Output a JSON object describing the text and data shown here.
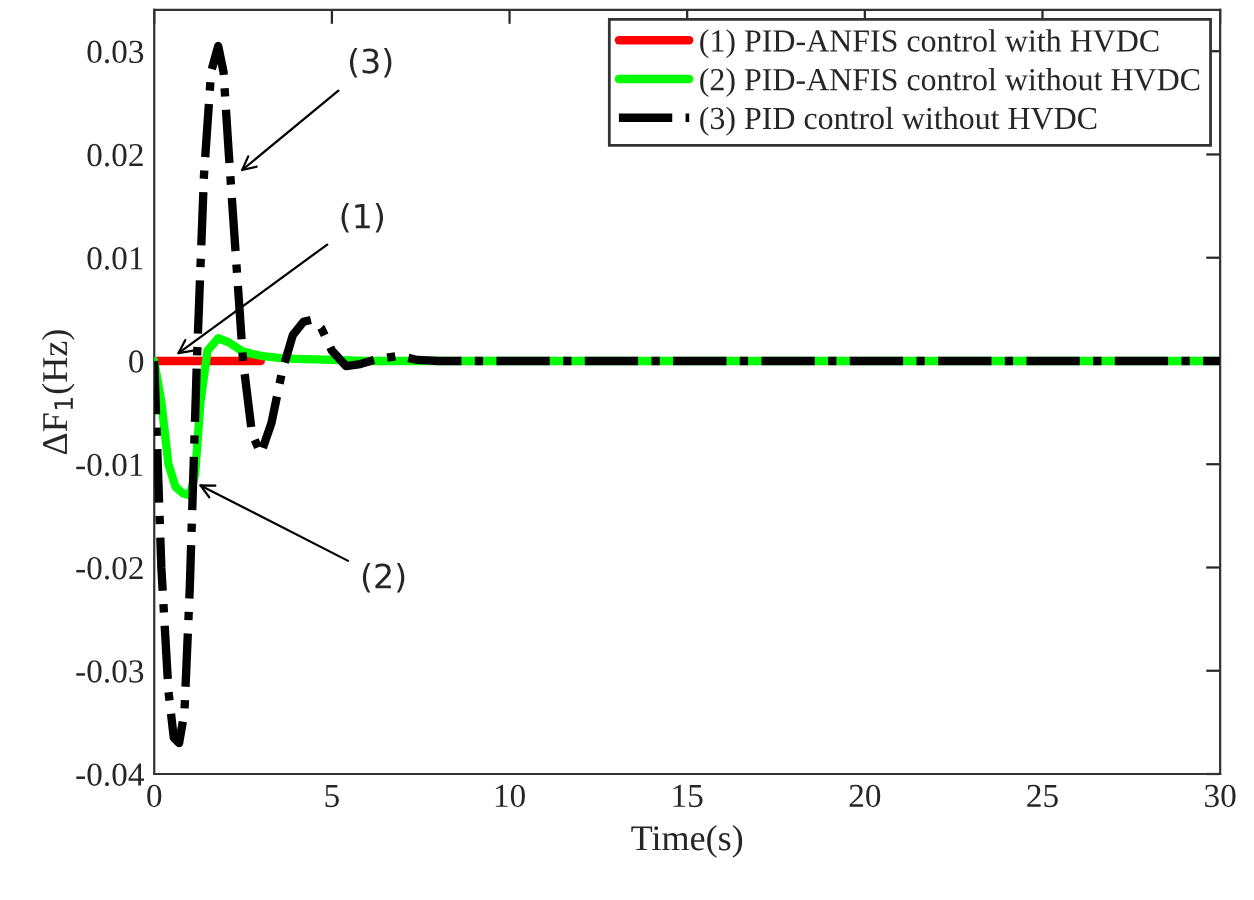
{
  "chart_data": {
    "type": "line",
    "xlabel": "Time(s)",
    "ylabel": "ΔF$_{1}$(Hz)",
    "xlim": [
      0,
      30
    ],
    "xticks": [
      0,
      5,
      10,
      15,
      20,
      25,
      30
    ],
    "ylim": [
      -0.04,
      0.034
    ],
    "yticks": [
      -0.04,
      -0.03,
      -0.02,
      -0.01,
      0,
      0.01,
      0.02,
      0.03
    ],
    "grid": false,
    "legend": "top right",
    "series": [
      {
        "name": "(1) PID-ANFIS control with HVDC",
        "color": "#ff0000",
        "line_style": "solid",
        "x": [
          0,
          0.5,
          1,
          1.5,
          2,
          2.5,
          3
        ],
        "values": [
          0,
          0,
          0,
          0,
          0,
          0,
          0
        ]
      },
      {
        "name": "(2) PID-ANFIS control without HVDC",
        "color": "#00ff00",
        "line_style": "solid",
        "x": [
          0,
          0.2,
          0.4,
          0.6,
          0.8,
          1.0,
          1.15,
          1.3,
          1.5,
          1.8,
          2.1,
          2.5,
          3.0,
          3.5,
          4.0,
          5.0,
          6.0,
          8.0,
          30
        ],
        "values": [
          0,
          -0.004,
          -0.01,
          -0.0122,
          -0.0128,
          -0.013,
          -0.011,
          -0.004,
          0.001,
          0.0022,
          0.0018,
          0.0009,
          0.0005,
          0.0003,
          0.0002,
          0.0001,
          0,
          0,
          0
        ]
      },
      {
        "name": "(3) PID control without HVDC",
        "color": "#000000",
        "line_style": "dashdot",
        "x": [
          0,
          0.2,
          0.4,
          0.55,
          0.7,
          0.85,
          1.0,
          1.2,
          1.4,
          1.6,
          1.8,
          1.95,
          2.1,
          2.3,
          2.5,
          2.75,
          3.0,
          3.3,
          3.6,
          3.9,
          4.2,
          4.45,
          4.7,
          5.0,
          5.4,
          5.8,
          6.3,
          6.9,
          7.4,
          8.0,
          30
        ],
        "values": [
          0,
          -0.02,
          -0.032,
          -0.0365,
          -0.037,
          -0.034,
          -0.022,
          0.0,
          0.018,
          0.028,
          0.0305,
          0.028,
          0.02,
          0.01,
          0.0,
          -0.007,
          -0.009,
          -0.006,
          -0.001,
          0.0025,
          0.0038,
          0.004,
          0.0032,
          0.001,
          -0.0005,
          -0.0003,
          0.0002,
          0.0005,
          0.0001,
          0,
          0
        ]
      }
    ],
    "annotations": [
      {
        "text": "(3)",
        "x": 2.3,
        "y": 0.018
      },
      {
        "text": "(1)",
        "x": 0.5,
        "y": 0.0003
      },
      {
        "text": "(2)",
        "x": 1.1,
        "y": -0.0117
      }
    ]
  }
}
